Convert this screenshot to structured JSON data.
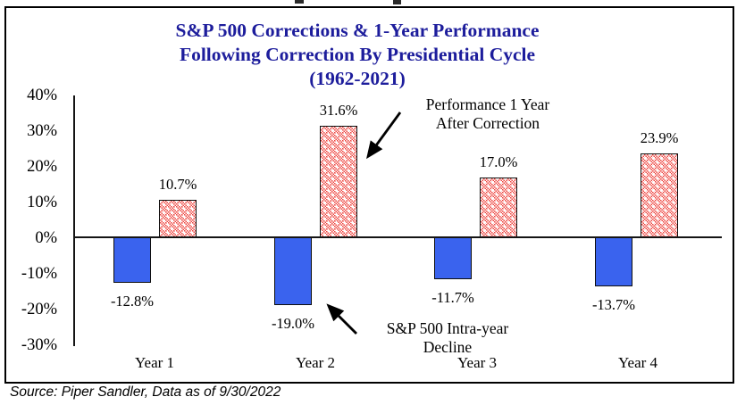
{
  "title": {
    "line1": "S&P 500 Corrections & 1-Year Performance",
    "line2": "Following Correction By Presidential Cycle",
    "line3": "(1962-2021)"
  },
  "annotations": {
    "performance": {
      "line1": "Performance 1 Year",
      "line2": "After Correction"
    },
    "decline": {
      "line1": "S&P 500 Intra-year",
      "line2": "Decline"
    }
  },
  "source_note": "Source: Piper Sandler, Data as of 9/30/2022",
  "colors": {
    "title": "#1d1d9c",
    "decline_bar": "#3a63ee",
    "performance_bar": "#ee443f",
    "axis": "#141414"
  },
  "chart_data": {
    "type": "bar",
    "title": "S&P 500 Corrections & 1-Year Performance Following Correction By Presidential Cycle (1962-2021)",
    "categories": [
      "Year 1",
      "Year 2",
      "Year 3",
      "Year 4"
    ],
    "series": [
      {
        "name": "S&P 500 Intra-year Decline",
        "values": [
          -12.8,
          -19.0,
          -11.7,
          -13.7
        ]
      },
      {
        "name": "Performance 1 Year After Correction",
        "values": [
          10.7,
          31.6,
          17.0,
          23.9
        ]
      }
    ],
    "value_label_suffix": "%",
    "y_ticks": [
      "40%",
      "30%",
      "20%",
      "10%",
      "0%",
      "-10%",
      "-20%",
      "-30%"
    ],
    "y_tick_values": [
      40,
      30,
      20,
      10,
      0,
      -10,
      -20,
      -30
    ],
    "ylim": [
      -30,
      40
    ],
    "grid": false,
    "legend_position": "none"
  }
}
